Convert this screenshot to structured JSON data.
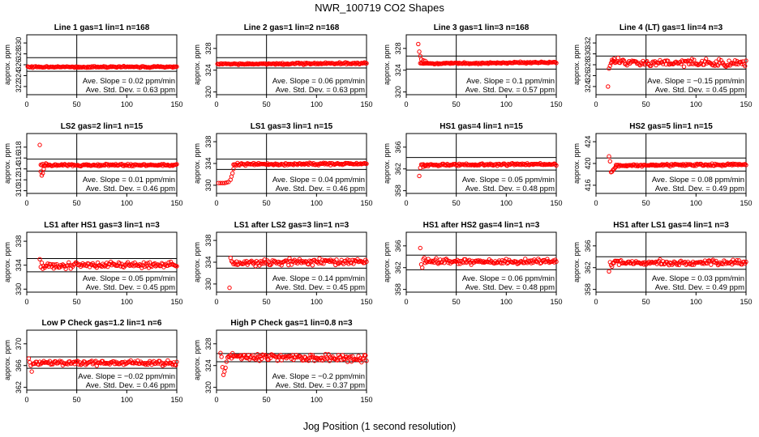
{
  "title": "NWR_100719  CO2 Shapes",
  "xlabel": "Jog Position (1 second resolution)",
  "chart_data": [
    {
      "type": "scatter",
      "title": "Line 1 gas=1 lin=1 n=168",
      "ylabel": "approx. ppm",
      "xlim": [
        0,
        150
      ],
      "xticks": [
        0,
        50,
        100,
        150
      ],
      "ylim": [
        320.5,
        331.5
      ],
      "yticks": [
        322,
        324,
        326,
        328,
        330
      ],
      "hlines": [
        324.8,
        327.3
      ],
      "vline": 50,
      "series": [
        {
          "start": 1,
          "end": 150,
          "base": 325.6,
          "slope": 0.02,
          "sd": 0.06,
          "seed": 1,
          "early": []
        }
      ],
      "annotations": [
        "Ave. Slope =  0.02  ppm/min",
        "Ave. Std. Dev. =  0.63  ppm"
      ]
    },
    {
      "type": "scatter",
      "title": "Line 2 gas=1 lin=2 n=168",
      "ylabel": "approx. ppm",
      "xlim": [
        0,
        150
      ],
      "xticks": [
        0,
        50,
        100,
        150
      ],
      "ylim": [
        319.5,
        330.5
      ],
      "yticks": [
        320,
        324,
        328
      ],
      "hlines": [
        324.4,
        326.3
      ],
      "vline": 50,
      "series": [
        {
          "start": 1,
          "end": 150,
          "base": 325.2,
          "slope": 0.06,
          "sd": 0.08,
          "seed": 2,
          "early": []
        }
      ],
      "annotations": [
        "Ave. Slope =  0.06  ppm/min",
        "Ave. Std. Dev. =  0.63  ppm"
      ]
    },
    {
      "type": "scatter",
      "title": "Line 3 gas=1 lin=3 n=168",
      "ylabel": "approx. ppm",
      "xlim": [
        0,
        150
      ],
      "xticks": [
        0,
        50,
        100,
        150
      ],
      "ylim": [
        319.5,
        330.5
      ],
      "yticks": [
        320,
        324,
        328
      ],
      "hlines": [
        324.2,
        326.6
      ],
      "vline": 50,
      "series": [
        {
          "start": 14,
          "end": 150,
          "base": 325.3,
          "slope": 0.1,
          "sd": 0.07,
          "seed": 3,
          "early": [
            [
              12,
              328.8
            ],
            [
              13,
              327.4
            ],
            [
              14,
              326.6
            ],
            [
              15,
              326.0
            ],
            [
              17,
              325.8
            ],
            [
              19,
              325.7
            ]
          ]
        }
      ],
      "annotations": [
        "Ave. Slope =  0.1  ppm/min",
        "Ave. Std. Dev. =  0.57  ppm"
      ]
    },
    {
      "type": "scatter",
      "title": "Line 4 (LT) gas=1 lin=4 n=3",
      "ylabel": "approx. ppm",
      "xlim": [
        0,
        150
      ],
      "xticks": [
        0,
        50,
        100,
        150
      ],
      "ylim": [
        322.5,
        333.5
      ],
      "yticks": [
        324,
        326,
        328,
        330,
        332
      ],
      "hlines": [
        327.2,
        329.6
      ],
      "vline": 50,
      "series": [
        {
          "start": 16,
          "end": 150,
          "base": 328.4,
          "slope": -0.15,
          "sd": 0.3,
          "seed": 4,
          "early": [
            [
              12,
              324.0
            ],
            [
              13,
              327.3
            ],
            [
              14,
              327.8
            ],
            [
              15,
              328.3
            ],
            [
              16,
              328.9
            ],
            [
              18,
              329.1
            ]
          ]
        }
      ],
      "annotations": [
        "Ave. Slope =  −0.15  ppm/min",
        "Ave. Std. Dev. =  0.45  ppm"
      ]
    },
    {
      "type": "scatter",
      "title": "LS2 gas=2 lin=1 n=15",
      "ylabel": "approx. ppm",
      "xlim": [
        0,
        150
      ],
      "xticks": [
        0,
        50,
        100,
        150
      ],
      "ylim": [
        309.5,
        320.5
      ],
      "yticks": [
        310,
        312,
        314,
        316,
        318
      ],
      "hlines": [
        313.6,
        315.8
      ],
      "vline": 50,
      "series": [
        {
          "start": 14,
          "end": 150,
          "base": 314.7,
          "slope": 0.01,
          "sd": 0.1,
          "seed": 5,
          "early": [
            [
              13,
              318.4
            ],
            [
              14,
              313.5
            ],
            [
              15,
              312.8
            ],
            [
              16,
              313.2
            ],
            [
              17,
              314.0
            ],
            [
              19,
              315.0
            ]
          ]
        }
      ],
      "annotations": [
        "Ave. Slope =  0.01  ppm/min",
        "Ave. Std. Dev. =  0.46  ppm"
      ]
    },
    {
      "type": "scatter",
      "title": "LS1 gas=3 lin=1 n=15",
      "ylabel": "approx. ppm",
      "xlim": [
        0,
        150
      ],
      "xticks": [
        0,
        50,
        100,
        150
      ],
      "ylim": [
        328.5,
        339.5
      ],
      "yticks": [
        330,
        334,
        338
      ],
      "hlines": [
        332.9,
        334.8
      ],
      "vline": 50,
      "series": [
        {
          "start": 17,
          "end": 150,
          "base": 333.9,
          "slope": 0.04,
          "sd": 0.1,
          "seed": 6,
          "early": [
            [
              2,
              330.4
            ],
            [
              4,
              330.4
            ],
            [
              6,
              330.4
            ],
            [
              8,
              330.4
            ],
            [
              10,
              330.5
            ],
            [
              12,
              330.6
            ],
            [
              14,
              331.0
            ],
            [
              15,
              331.6
            ],
            [
              16,
              332.2
            ],
            [
              17,
              333.0
            ]
          ]
        }
      ],
      "annotations": [
        "Ave. Slope =  0.04  ppm/min",
        "Ave. Std. Dev. =  0.46  ppm"
      ]
    },
    {
      "type": "scatter",
      "title": "HS1 gas=4 lin=1 n=15",
      "ylabel": "approx. ppm",
      "xlim": [
        0,
        150
      ],
      "xticks": [
        0,
        50,
        100,
        150
      ],
      "ylim": [
        357.5,
        368.5
      ],
      "yticks": [
        358,
        362,
        366
      ],
      "hlines": [
        361.8,
        364.1
      ],
      "vline": 50,
      "series": [
        {
          "start": 16,
          "end": 150,
          "base": 362.8,
          "slope": 0.05,
          "sd": 0.1,
          "seed": 7,
          "early": [
            [
              13,
              360.7
            ],
            [
              14,
              362.2
            ],
            [
              15,
              362.8
            ],
            [
              17,
              362.4
            ],
            [
              19,
              362.5
            ]
          ]
        }
      ],
      "annotations": [
        "Ave. Slope =  0.05  ppm/min",
        "Ave. Std. Dev. =  0.48  ppm"
      ]
    },
    {
      "type": "scatter",
      "title": "HS2 gas=5 lin=1 n=15",
      "ylabel": "approx. ppm",
      "xlim": [
        0,
        150
      ],
      "xticks": [
        0,
        50,
        100,
        150
      ],
      "ylim": [
        414.5,
        425.5
      ],
      "yticks": [
        416,
        420,
        424
      ],
      "hlines": [
        418.6,
        421.0
      ],
      "vline": 50,
      "series": [
        {
          "start": 20,
          "end": 150,
          "base": 419.7,
          "slope": 0.08,
          "sd": 0.1,
          "seed": 8,
          "early": [
            [
              13,
              421.3
            ],
            [
              14,
              420.4
            ],
            [
              15,
              418.4
            ],
            [
              16,
              418.5
            ],
            [
              17,
              418.8
            ],
            [
              18,
              419.0
            ],
            [
              19,
              419.2
            ],
            [
              20,
              419.4
            ]
          ]
        }
      ],
      "annotations": [
        "Ave. Slope =  0.08  ppm/min",
        "Ave. Std. Dev. =  0.49  ppm"
      ]
    },
    {
      "type": "scatter",
      "title": "LS1 after HS1 gas=3 lin=1 n=3",
      "ylabel": "approx. ppm",
      "xlim": [
        0,
        150
      ],
      "xticks": [
        0,
        50,
        100,
        150
      ],
      "ylim": [
        329.5,
        339.5
      ],
      "yticks": [
        330,
        334,
        338
      ],
      "hlines": [
        332.9,
        335.1
      ],
      "vline": 50,
      "series": [
        {
          "start": 16,
          "end": 150,
          "base": 334.0,
          "slope": 0.05,
          "sd": 0.25,
          "seed": 9,
          "early": [
            [
              13,
              335.0
            ],
            [
              14,
              333.7
            ],
            [
              15,
              334.4
            ]
          ]
        }
      ],
      "annotations": [
        "Ave. Slope =  0.05  ppm/min",
        "Ave. Std. Dev. =  0.45  ppm"
      ]
    },
    {
      "type": "scatter",
      "title": "LS1 after LS2 gas=3 lin=1 n=3",
      "ylabel": "approx. ppm",
      "xlim": [
        0,
        150
      ],
      "xticks": [
        0,
        50,
        100,
        150
      ],
      "ylim": [
        328.5,
        339.5
      ],
      "yticks": [
        330,
        334,
        338
      ],
      "hlines": [
        332.9,
        335.1
      ],
      "vline": 50,
      "series": [
        {
          "start": 16,
          "end": 150,
          "base": 334.0,
          "slope": 0.14,
          "sd": 0.25,
          "seed": 10,
          "early": [
            [
              13,
              329.3
            ],
            [
              14,
              334.8
            ],
            [
              15,
              334.2
            ]
          ]
        }
      ],
      "annotations": [
        "Ave. Slope =  0.14  ppm/min",
        "Ave. Std. Dev. =  0.45  ppm"
      ]
    },
    {
      "type": "scatter",
      "title": "HS1 after HS2 gas=4 lin=1 n=3",
      "ylabel": "approx. ppm",
      "xlim": [
        0,
        150
      ],
      "xticks": [
        0,
        50,
        100,
        150
      ],
      "ylim": [
        357.5,
        368.5
      ],
      "yticks": [
        358,
        362,
        366
      ],
      "hlines": [
        361.6,
        364.3
      ],
      "vline": 50,
      "series": [
        {
          "start": 19,
          "end": 150,
          "base": 363.1,
          "slope": 0.06,
          "sd": 0.25,
          "seed": 11,
          "early": [
            [
              14,
              365.6
            ],
            [
              15,
              362.6
            ],
            [
              16,
              362.0
            ],
            [
              17,
              363.5
            ],
            [
              18,
              363.8
            ]
          ]
        }
      ],
      "annotations": [
        "Ave. Slope =  0.06  ppm/min",
        "Ave. Std. Dev. =  0.48  ppm"
      ]
    },
    {
      "type": "scatter",
      "title": "HS1 after LS1 gas=4 lin=1 n=3",
      "ylabel": "approx. ppm",
      "xlim": [
        0,
        150
      ],
      "xticks": [
        0,
        50,
        100,
        150
      ],
      "ylim": [
        357.5,
        368.5
      ],
      "yticks": [
        358,
        362,
        366
      ],
      "hlines": [
        361.7,
        364.0
      ],
      "vline": 50,
      "series": [
        {
          "start": 17,
          "end": 150,
          "base": 362.9,
          "slope": 0.03,
          "sd": 0.25,
          "seed": 12,
          "early": [
            [
              13,
              361.3
            ],
            [
              14,
              363.0
            ],
            [
              15,
              362.5
            ],
            [
              16,
              362.2
            ]
          ]
        }
      ],
      "annotations": [
        "Ave. Slope =  0.03  ppm/min",
        "Ave. Std. Dev. =  0.49  ppm"
      ]
    },
    {
      "type": "scatter",
      "title": "Low P Check gas=1.2 lin=1 n=6",
      "ylabel": "approx. ppm",
      "xlim": [
        0,
        150
      ],
      "xticks": [
        0,
        50,
        100,
        150
      ],
      "ylim": [
        361.5,
        372.5
      ],
      "yticks": [
        362,
        366,
        370
      ],
      "hlines": [
        365.5,
        367.6
      ],
      "vline": 50,
      "series": [
        {
          "start": 6,
          "end": 150,
          "base": 366.5,
          "slope": -0.02,
          "sd": 0.22,
          "seed": 13,
          "early": [
            [
              2,
              367.3
            ],
            [
              3,
              366.6
            ],
            [
              4,
              366.0
            ],
            [
              5,
              364.9
            ]
          ]
        }
      ],
      "annotations": [
        "Ave. Slope =  −0.02  ppm/min",
        "Ave. Std. Dev. =  0.46  ppm"
      ]
    },
    {
      "type": "scatter",
      "title": "High P Check gas=1 lin=0.8 n=3",
      "ylabel": "approx. ppm",
      "xlim": [
        0,
        150
      ],
      "xticks": [
        0,
        50,
        100,
        150
      ],
      "ylim": [
        319.5,
        330.5
      ],
      "yticks": [
        320,
        324,
        328
      ],
      "hlines": [
        324.7,
        326.2
      ],
      "vline": 50,
      "series": [
        {
          "start": 13,
          "end": 150,
          "base": 325.5,
          "slope": -0.2,
          "sd": 0.3,
          "seed": 14,
          "early": [
            [
              4,
              326.3
            ],
            [
              5,
              325.6
            ],
            [
              6,
              323.7
            ],
            [
              7,
              322.3
            ],
            [
              8,
              322.9
            ],
            [
              9,
              323.6
            ],
            [
              10,
              324.7
            ],
            [
              11,
              325.5
            ],
            [
              12,
              325.7
            ]
          ]
        }
      ],
      "annotations": [
        "Ave. Slope =  −0.2  ppm/min",
        "Ave. Std. Dev. =  0.37  ppm"
      ]
    }
  ]
}
